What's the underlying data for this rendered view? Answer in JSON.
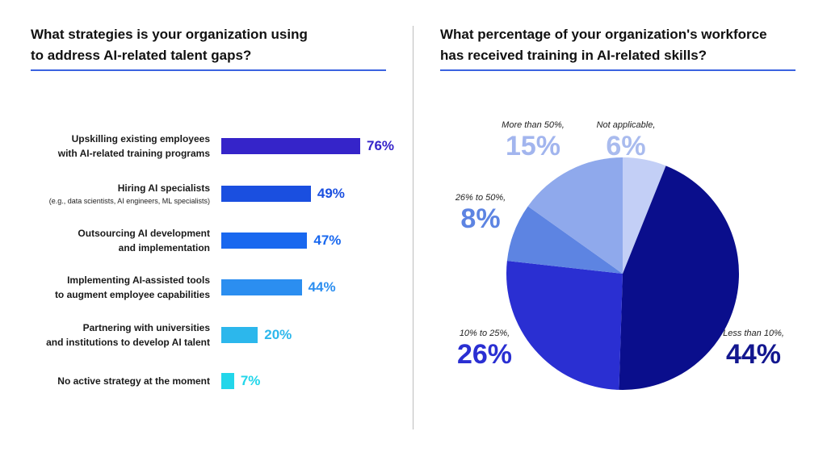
{
  "left_title_line1": "What strategies is your organization using",
  "left_title_line2": "to address AI-related talent gaps?",
  "right_title_line1": "What percentage of your organization's workforce",
  "right_title_line2": "has received training in AI-related skills?",
  "chart_data": [
    {
      "type": "bar",
      "orientation": "horizontal",
      "title": "What strategies is your organization using to address AI-related talent gaps?",
      "unit": "%",
      "categories": [
        {
          "line1": "Upskilling existing employees",
          "line2": "with AI-related training programs",
          "sub": ""
        },
        {
          "line1": "Hiring AI specialists",
          "line2": "",
          "sub": "(e.g., data scientists, AI engineers, ML specialists)"
        },
        {
          "line1": "Outsourcing AI development",
          "line2": "and implementation",
          "sub": ""
        },
        {
          "line1": "Implementing AI-assisted tools",
          "line2": "to augment employee capabilities",
          "sub": ""
        },
        {
          "line1": "Partnering with universities",
          "line2": "and institutions to develop AI talent",
          "sub": ""
        },
        {
          "line1": "No active strategy at the moment",
          "line2": "",
          "sub": ""
        }
      ],
      "values": [
        76,
        49,
        47,
        44,
        20,
        7
      ],
      "value_labels": [
        "76%",
        "49%",
        "47%",
        "44%",
        "20%",
        "7%"
      ],
      "bar_colors": [
        "#3524c9",
        "#1a4fe0",
        "#1968ef",
        "#2b8ef0",
        "#2cb7ec",
        "#22d6ea"
      ],
      "label_colors": [
        "#3524c9",
        "#1a4fe0",
        "#1968ef",
        "#2b8ef0",
        "#2cb7ec",
        "#22d6ea"
      ],
      "xlim": [
        0,
        100
      ]
    },
    {
      "type": "pie",
      "title": "What percentage of your organization's workforce has received training in AI-related skills?",
      "slices": [
        {
          "label": "Not applicable,",
          "value": 6,
          "pct_label": "6%",
          "color": "#c3cff6",
          "text_color": "#a9bbee"
        },
        {
          "label": "Less than 10%,",
          "value": 44,
          "pct_label": "44%",
          "color": "#0a0e8c",
          "text_color": "#13178f"
        },
        {
          "label": "10% to 25%,",
          "value": 26,
          "pct_label": "26%",
          "color": "#2a2fd2",
          "text_color": "#2a2fd2"
        },
        {
          "label": "26% to 50%,",
          "value": 8,
          "pct_label": "8%",
          "color": "#5d84e2",
          "text_color": "#5d84e2"
        },
        {
          "label": "More than 50%,",
          "value": 15,
          "pct_label": "15%",
          "color": "#8fa9ec",
          "text_color": "#a2b5ee"
        }
      ]
    }
  ]
}
